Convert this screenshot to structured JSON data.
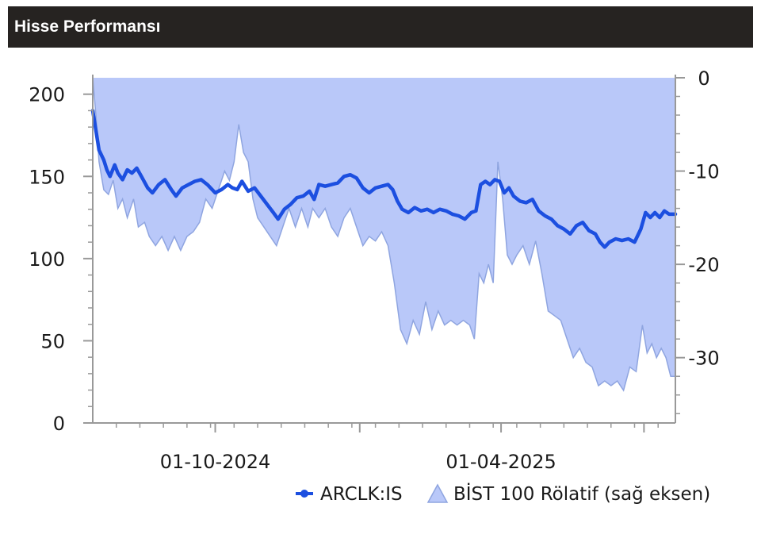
{
  "header": {
    "title": "Hisse Performansı"
  },
  "chart_data": {
    "type": "line",
    "title": "Hisse Performansı",
    "x_range": [
      "2024-07-15",
      "2025-07-21"
    ],
    "x_ticks": [
      {
        "date": "2024-10-01",
        "label": "01-10-2024"
      },
      {
        "date": "2025-04-01",
        "label": "01-04-2025"
      }
    ],
    "y_left": {
      "range": [
        0,
        210
      ],
      "ticks": [
        0,
        50,
        100,
        150,
        200
      ]
    },
    "y_right": {
      "range": [
        -37,
        0
      ],
      "ticks": [
        0,
        -10,
        -20,
        -30
      ]
    },
    "grid": false,
    "legend": {
      "position": "bottom-right"
    },
    "colors": {
      "line": "#1c4fe0",
      "area_fill": "#b9c8f9",
      "area_stroke": "#8fa5e0",
      "header_bg": "#262321"
    },
    "series": [
      {
        "name": "ARCLK:IS",
        "type": "line",
        "axis": "left",
        "points": [
          [
            "2024-07-15",
            190
          ],
          [
            "2024-07-17",
            178
          ],
          [
            "2024-07-19",
            166
          ],
          [
            "2024-07-22",
            160
          ],
          [
            "2024-07-24",
            154
          ],
          [
            "2024-07-26",
            150
          ],
          [
            "2024-07-29",
            157
          ],
          [
            "2024-07-31",
            152
          ],
          [
            "2024-08-03",
            148
          ],
          [
            "2024-08-06",
            154
          ],
          [
            "2024-08-09",
            152
          ],
          [
            "2024-08-12",
            155
          ],
          [
            "2024-08-15",
            150
          ],
          [
            "2024-08-19",
            143
          ],
          [
            "2024-08-22",
            140
          ],
          [
            "2024-08-26",
            145
          ],
          [
            "2024-08-30",
            148
          ],
          [
            "2024-09-03",
            142
          ],
          [
            "2024-09-06",
            138
          ],
          [
            "2024-09-10",
            143
          ],
          [
            "2024-09-14",
            145
          ],
          [
            "2024-09-18",
            147
          ],
          [
            "2024-09-22",
            148
          ],
          [
            "2024-09-26",
            145
          ],
          [
            "2024-10-01",
            140
          ],
          [
            "2024-10-05",
            142
          ],
          [
            "2024-10-09",
            145
          ],
          [
            "2024-10-12",
            143
          ],
          [
            "2024-10-15",
            142
          ],
          [
            "2024-10-18",
            147
          ],
          [
            "2024-10-22",
            141
          ],
          [
            "2024-10-26",
            143
          ],
          [
            "2024-10-30",
            138
          ],
          [
            "2024-11-03",
            133
          ],
          [
            "2024-11-07",
            128
          ],
          [
            "2024-11-10",
            124
          ],
          [
            "2024-11-14",
            130
          ],
          [
            "2024-11-18",
            133
          ],
          [
            "2024-11-22",
            137
          ],
          [
            "2024-11-26",
            138
          ],
          [
            "2024-11-30",
            141
          ],
          [
            "2024-12-03",
            136
          ],
          [
            "2024-12-06",
            145
          ],
          [
            "2024-12-10",
            144
          ],
          [
            "2024-12-14",
            145
          ],
          [
            "2024-12-18",
            146
          ],
          [
            "2024-12-22",
            150
          ],
          [
            "2024-12-26",
            151
          ],
          [
            "2024-12-30",
            149
          ],
          [
            "2025-01-03",
            143
          ],
          [
            "2025-01-07",
            140
          ],
          [
            "2025-01-11",
            143
          ],
          [
            "2025-01-15",
            144
          ],
          [
            "2025-01-19",
            145
          ],
          [
            "2025-01-22",
            142
          ],
          [
            "2025-01-25",
            135
          ],
          [
            "2025-01-28",
            130
          ],
          [
            "2025-02-01",
            128
          ],
          [
            "2025-02-05",
            131
          ],
          [
            "2025-02-09",
            129
          ],
          [
            "2025-02-13",
            130
          ],
          [
            "2025-02-17",
            128
          ],
          [
            "2025-02-21",
            130
          ],
          [
            "2025-02-25",
            129
          ],
          [
            "2025-03-01",
            127
          ],
          [
            "2025-03-05",
            126
          ],
          [
            "2025-03-09",
            124
          ],
          [
            "2025-03-13",
            128
          ],
          [
            "2025-03-16",
            129
          ],
          [
            "2025-03-19",
            145
          ],
          [
            "2025-03-22",
            147
          ],
          [
            "2025-03-25",
            145
          ],
          [
            "2025-03-28",
            148
          ],
          [
            "2025-03-31",
            147
          ],
          [
            "2025-04-03",
            140
          ],
          [
            "2025-04-06",
            143
          ],
          [
            "2025-04-09",
            138
          ],
          [
            "2025-04-13",
            135
          ],
          [
            "2025-04-17",
            134
          ],
          [
            "2025-04-21",
            136
          ],
          [
            "2025-04-25",
            129
          ],
          [
            "2025-04-29",
            126
          ],
          [
            "2025-05-03",
            124
          ],
          [
            "2025-05-07",
            120
          ],
          [
            "2025-05-11",
            118
          ],
          [
            "2025-05-15",
            115
          ],
          [
            "2025-05-19",
            120
          ],
          [
            "2025-05-23",
            122
          ],
          [
            "2025-05-27",
            117
          ],
          [
            "2025-05-31",
            115
          ],
          [
            "2025-06-03",
            110
          ],
          [
            "2025-06-06",
            107
          ],
          [
            "2025-06-09",
            110
          ],
          [
            "2025-06-13",
            112
          ],
          [
            "2025-06-17",
            111
          ],
          [
            "2025-06-21",
            112
          ],
          [
            "2025-06-25",
            110
          ],
          [
            "2025-06-29",
            118
          ],
          [
            "2025-07-02",
            128
          ],
          [
            "2025-07-05",
            125
          ],
          [
            "2025-07-08",
            128
          ],
          [
            "2025-07-11",
            125
          ],
          [
            "2025-07-14",
            129
          ],
          [
            "2025-07-17",
            127
          ],
          [
            "2025-07-21",
            127
          ]
        ]
      },
      {
        "name": "BİST 100 Rölatif (sağ eksen)",
        "type": "area",
        "axis": "right",
        "points": [
          [
            "2024-07-15",
            0
          ],
          [
            "2024-07-17",
            -4
          ],
          [
            "2024-07-19",
            -9
          ],
          [
            "2024-07-22",
            -12
          ],
          [
            "2024-07-25",
            -12.5
          ],
          [
            "2024-07-28",
            -11
          ],
          [
            "2024-07-31",
            -14
          ],
          [
            "2024-08-03",
            -13
          ],
          [
            "2024-08-06",
            -15
          ],
          [
            "2024-08-10",
            -13
          ],
          [
            "2024-08-13",
            -16
          ],
          [
            "2024-08-17",
            -15.5
          ],
          [
            "2024-08-20",
            -17
          ],
          [
            "2024-08-24",
            -18
          ],
          [
            "2024-08-28",
            -17
          ],
          [
            "2024-09-01",
            -18.5
          ],
          [
            "2024-09-05",
            -17
          ],
          [
            "2024-09-09",
            -18.5
          ],
          [
            "2024-09-13",
            -17
          ],
          [
            "2024-09-17",
            -16.5
          ],
          [
            "2024-09-21",
            -15.5
          ],
          [
            "2024-09-25",
            -13
          ],
          [
            "2024-09-29",
            -14
          ],
          [
            "2024-10-03",
            -12
          ],
          [
            "2024-10-07",
            -10
          ],
          [
            "2024-10-10",
            -11
          ],
          [
            "2024-10-13",
            -9
          ],
          [
            "2024-10-16",
            -5
          ],
          [
            "2024-10-19",
            -8
          ],
          [
            "2024-10-22",
            -9
          ],
          [
            "2024-10-25",
            -13
          ],
          [
            "2024-10-28",
            -15
          ],
          [
            "2024-11-01",
            -16
          ],
          [
            "2024-11-05",
            -17
          ],
          [
            "2024-11-09",
            -18
          ],
          [
            "2024-11-13",
            -16
          ],
          [
            "2024-11-17",
            -14
          ],
          [
            "2024-11-21",
            -16
          ],
          [
            "2024-11-25",
            -14
          ],
          [
            "2024-11-29",
            -16
          ],
          [
            "2024-12-02",
            -14
          ],
          [
            "2024-12-06",
            -15
          ],
          [
            "2024-12-10",
            -14
          ],
          [
            "2024-12-14",
            -16
          ],
          [
            "2024-12-18",
            -17
          ],
          [
            "2024-12-22",
            -15
          ],
          [
            "2024-12-26",
            -14
          ],
          [
            "2024-12-30",
            -16
          ],
          [
            "2025-01-03",
            -18
          ],
          [
            "2025-01-07",
            -17
          ],
          [
            "2025-01-11",
            -17.5
          ],
          [
            "2025-01-15",
            -16.5
          ],
          [
            "2025-01-19",
            -18
          ],
          [
            "2025-01-23",
            -22
          ],
          [
            "2025-01-27",
            -27
          ],
          [
            "2025-01-31",
            -28.5
          ],
          [
            "2025-02-04",
            -26
          ],
          [
            "2025-02-08",
            -27.5
          ],
          [
            "2025-02-12",
            -24
          ],
          [
            "2025-02-16",
            -27
          ],
          [
            "2025-02-20",
            -25
          ],
          [
            "2025-02-24",
            -26.5
          ],
          [
            "2025-02-28",
            -26
          ],
          [
            "2025-03-04",
            -26.5
          ],
          [
            "2025-03-08",
            -26
          ],
          [
            "2025-03-12",
            -26.5
          ],
          [
            "2025-03-15",
            -28
          ],
          [
            "2025-03-18",
            -21
          ],
          [
            "2025-03-21",
            -22
          ],
          [
            "2025-03-24",
            -20
          ],
          [
            "2025-03-27",
            -22
          ],
          [
            "2025-03-30",
            -9
          ],
          [
            "2025-04-02",
            -13
          ],
          [
            "2025-04-05",
            -19
          ],
          [
            "2025-04-08",
            -20
          ],
          [
            "2025-04-11",
            -19
          ],
          [
            "2025-04-15",
            -18
          ],
          [
            "2025-04-19",
            -20
          ],
          [
            "2025-04-23",
            -17.5
          ],
          [
            "2025-04-27",
            -21
          ],
          [
            "2025-05-01",
            -25
          ],
          [
            "2025-05-05",
            -25.5
          ],
          [
            "2025-05-09",
            -26
          ],
          [
            "2025-05-13",
            -28
          ],
          [
            "2025-05-17",
            -30
          ],
          [
            "2025-05-21",
            -29
          ],
          [
            "2025-05-25",
            -30.5
          ],
          [
            "2025-05-29",
            -31
          ],
          [
            "2025-06-02",
            -33
          ],
          [
            "2025-06-06",
            -32.5
          ],
          [
            "2025-06-10",
            -33
          ],
          [
            "2025-06-14",
            -32.5
          ],
          [
            "2025-06-18",
            -33.5
          ],
          [
            "2025-06-22",
            -31
          ],
          [
            "2025-06-26",
            -31.5
          ],
          [
            "2025-06-30",
            -26.5
          ],
          [
            "2025-07-03",
            -29.5
          ],
          [
            "2025-07-06",
            -28.5
          ],
          [
            "2025-07-09",
            -30
          ],
          [
            "2025-07-12",
            -29
          ],
          [
            "2025-07-15",
            -30
          ],
          [
            "2025-07-18",
            -32
          ],
          [
            "2025-07-21",
            -32
          ]
        ]
      }
    ]
  }
}
